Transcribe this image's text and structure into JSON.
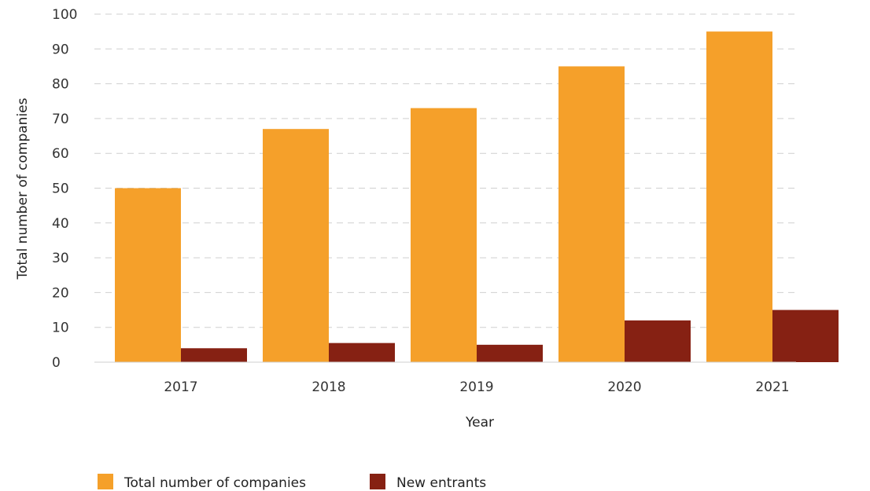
{
  "chart_data": {
    "type": "bar",
    "title": "",
    "xlabel": "Year",
    "ylabel": "Total number of companies",
    "categories": [
      "2017",
      "2018",
      "2019",
      "2020",
      "2021"
    ],
    "series": [
      {
        "name": "Total number of companies",
        "values": [
          50,
          67,
          73,
          85,
          95
        ],
        "color": "#F5A02A"
      },
      {
        "name": "New entrants",
        "values": [
          4,
          5.5,
          5,
          12,
          15
        ],
        "color": "#862113"
      }
    ],
    "ylim": [
      0,
      100
    ],
    "yticks": [
      0,
      10,
      20,
      30,
      40,
      50,
      60,
      70,
      80,
      90,
      100
    ],
    "grid": true,
    "legend_position": "bottom-left"
  }
}
